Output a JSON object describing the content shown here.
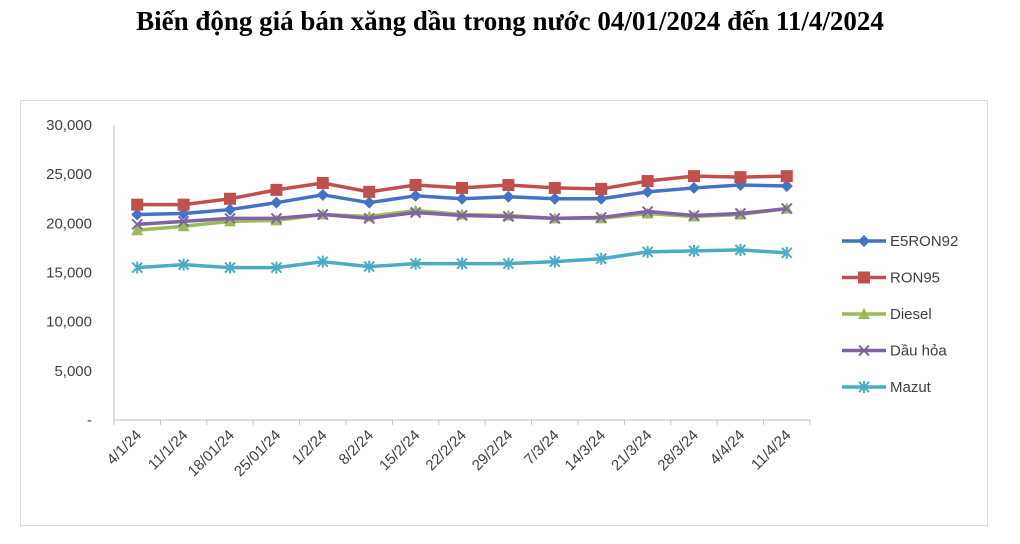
{
  "chart_data": {
    "type": "line",
    "title": "Biến động giá bán xăng dầu trong nước 04/01/2024 đến 11/4/2024",
    "xlabel": "",
    "ylabel": "",
    "ylim": [
      0,
      30000
    ],
    "yticks": [
      "-",
      "5,000",
      "10,000",
      "15,000",
      "20,000",
      "25,000",
      "30,000"
    ],
    "categories": [
      "4/1/24",
      "11/1/24",
      "18/01/24",
      "25/01/24",
      "1/2/24",
      "8/2/24",
      "15/2/24",
      "22/2/24",
      "29/2/24",
      "7/3/24",
      "14/3/24",
      "21/3/24",
      "28/3/24",
      "4/4/24",
      "11/4/24"
    ],
    "grid": false,
    "legend": "right",
    "series": [
      {
        "name": "E5RON92",
        "color": "#4472c4",
        "marker": "diamond",
        "values": [
          20900,
          21000,
          21400,
          22100,
          22900,
          22100,
          22800,
          22500,
          22700,
          22500,
          22500,
          23200,
          23600,
          23900,
          23800
        ]
      },
      {
        "name": "RON95",
        "color": "#c0504d",
        "marker": "square",
        "values": [
          21900,
          21900,
          22500,
          23400,
          24100,
          23200,
          23900,
          23600,
          23900,
          23600,
          23500,
          24300,
          24800,
          24700,
          24800
        ]
      },
      {
        "name": "Diesel",
        "color": "#9bbb59",
        "marker": "triangle",
        "values": [
          19300,
          19700,
          20200,
          20300,
          20900,
          20700,
          21300,
          20900,
          20800,
          20500,
          20500,
          21000,
          20700,
          20900,
          21500
        ]
      },
      {
        "name": "Dầu hỏa",
        "color": "#8064a2",
        "marker": "x",
        "values": [
          19900,
          20200,
          20500,
          20500,
          20900,
          20500,
          21100,
          20800,
          20700,
          20500,
          20600,
          21200,
          20800,
          21000,
          21500
        ]
      },
      {
        "name": "Mazut",
        "color": "#4bacc6",
        "marker": "star",
        "values": [
          15500,
          15800,
          15500,
          15500,
          16100,
          15600,
          15900,
          15900,
          15900,
          16100,
          16400,
          17100,
          17200,
          17300,
          17000
        ]
      }
    ]
  }
}
